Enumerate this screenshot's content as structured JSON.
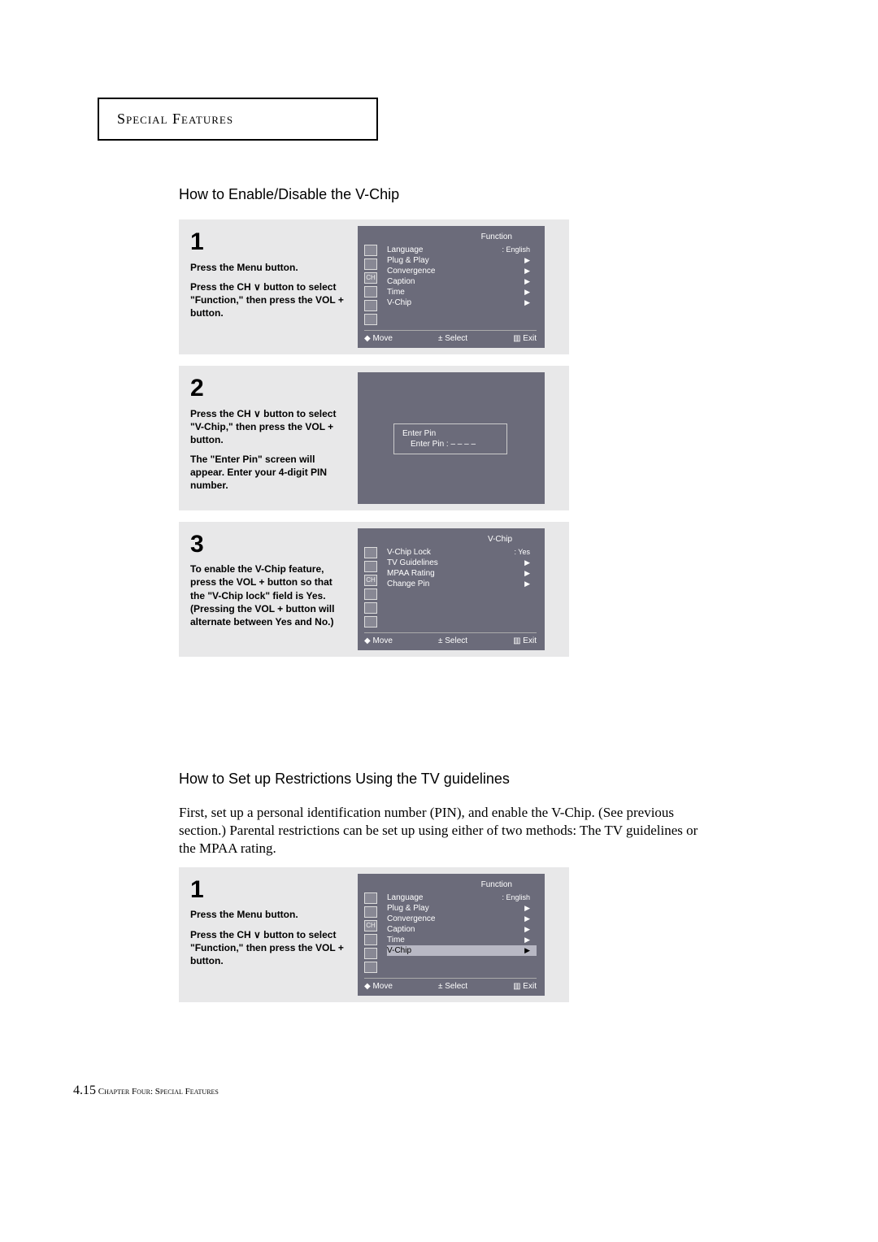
{
  "chapter_title": "Special Features",
  "section1_title": "How to Enable/Disable the V-Chip",
  "section2_title": "How to Set up Restrictions Using the  TV guidelines",
  "section2_intro": "First, set up a personal identification number (PIN), and enable the V-Chip. (See previous section.)  Parental restrictions can be set up using either of two methods: The TV guidelines or the MPAA rating.",
  "steps1": [
    {
      "num": "1",
      "lines": [
        "Press the Menu button.",
        "Press the CH ∨ button to select \"Function,\" then press the VOL + button."
      ]
    },
    {
      "num": "2",
      "lines": [
        "Press the CH ∨ button to select \"V-Chip,\" then press the VOL + button.",
        "The \"Enter Pin\" screen will appear. Enter your 4-digit PIN number."
      ]
    },
    {
      "num": "3",
      "lines": [
        "To enable the V-Chip feature, press the VOL + button so that the \"V-Chip lock\" field is Yes. (Pressing the VOL + button will alternate between Yes and No.)"
      ]
    }
  ],
  "steps2": [
    {
      "num": "1",
      "lines": [
        "Press the Menu button.",
        "Press the CH ∨ button to select \"Function,\" then press the VOL + button."
      ]
    }
  ],
  "osd_function": {
    "title": "Function",
    "items": [
      {
        "label": "Language",
        "value": ": English",
        "hl": false
      },
      {
        "label": "Plug & Play",
        "value": "▶",
        "hl": false
      },
      {
        "label": "Convergence",
        "value": "▶",
        "hl": false
      },
      {
        "label": "Caption",
        "value": "▶",
        "hl": false
      },
      {
        "label": "Time",
        "value": "▶",
        "hl": false
      },
      {
        "label": "V-Chip",
        "value": "▶",
        "hl": false
      }
    ],
    "footer": [
      "◆ Move",
      "± Select",
      "▥ Exit"
    ]
  },
  "osd_pin": {
    "title": "Enter Pin",
    "line": "Enter Pin :   –   –   –   –"
  },
  "osd_vchip": {
    "title": "V-Chip",
    "items": [
      {
        "label": "V-Chip Lock",
        "value": ": Yes",
        "hl": false
      },
      {
        "label": "TV Guidelines",
        "value": "▶",
        "hl": false
      },
      {
        "label": "MPAA Rating",
        "value": "▶",
        "hl": false
      },
      {
        "label": "Change Pin",
        "value": "▶",
        "hl": false
      }
    ],
    "footer": [
      "◆ Move",
      "± Select",
      "▥ Exit"
    ]
  },
  "osd_function2": {
    "title": "Function",
    "items": [
      {
        "label": "Language",
        "value": ": English",
        "hl": false
      },
      {
        "label": "Plug & Play",
        "value": "▶",
        "hl": false
      },
      {
        "label": "Convergence",
        "value": "▶",
        "hl": false
      },
      {
        "label": "Caption",
        "value": "▶",
        "hl": false
      },
      {
        "label": "Time",
        "value": "▶",
        "hl": false
      },
      {
        "label": "V-Chip",
        "value": "▶",
        "hl": true
      }
    ],
    "footer": [
      "◆ Move",
      "± Select",
      "▥ Exit"
    ]
  },
  "footer_page": "4.15",
  "footer_text": "Chapter Four: Special Features",
  "icon_labels": [
    "▢",
    "▢",
    "CH",
    "▢",
    "▢",
    "▢"
  ]
}
